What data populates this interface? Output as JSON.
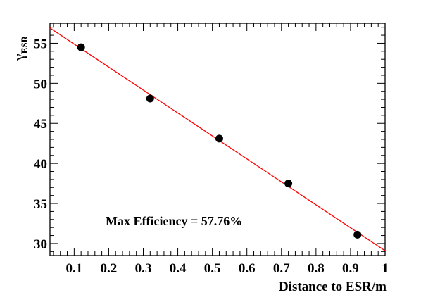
{
  "chart_data": {
    "type": "scatter",
    "xlabel": "Distance to ESR/m",
    "ylabel": {
      "symbol": "γ",
      "subscript": "ESR"
    },
    "xlim": [
      0.03,
      1.0
    ],
    "ylim": [
      28.5,
      57.5
    ],
    "x_ticks": [
      "0.1",
      "0.2",
      "0.3",
      "0.4",
      "0.5",
      "0.6",
      "0.7",
      "0.8",
      "0.9",
      "1"
    ],
    "y_ticks": [
      "30",
      "35",
      "40",
      "45",
      "50",
      "55"
    ],
    "points": [
      {
        "x": 0.12,
        "y": 54.5
      },
      {
        "x": 0.32,
        "y": 48.1
      },
      {
        "x": 0.52,
        "y": 43.1
      },
      {
        "x": 0.72,
        "y": 37.5
      },
      {
        "x": 0.92,
        "y": 31.1
      }
    ],
    "fit_line": {
      "x": [
        0.03,
        1.0
      ],
      "y": [
        56.9,
        29.1
      ],
      "color": "#ff0000"
    },
    "point_color": "#000000",
    "annotation": "Max Efficiency = 57.76%",
    "grid": false
  }
}
